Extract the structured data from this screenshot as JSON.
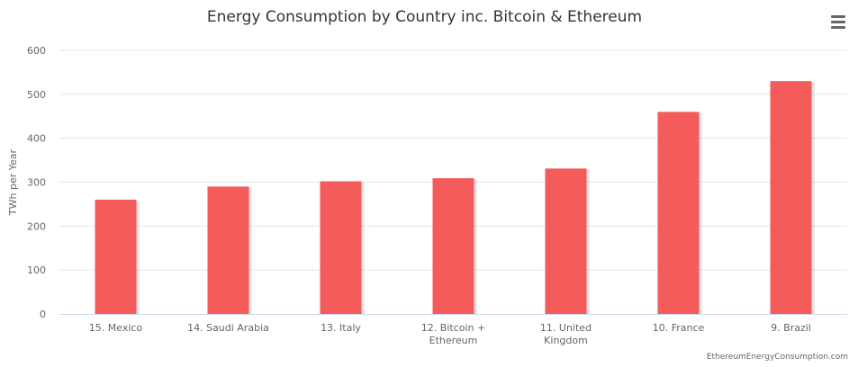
{
  "chart_data": {
    "type": "bar",
    "title": "Energy Consumption by Country inc. Bitcoin & Ethereum",
    "xlabel": "",
    "ylabel": "TWh per Year",
    "categories": [
      "15. Mexico",
      "14. Saudi Arabia",
      "13. Italy",
      "12. Bitcoin + Ethereum",
      "11. United Kingdom",
      "10. France",
      "9. Brazil"
    ],
    "values": [
      260,
      290,
      302,
      309,
      331,
      460,
      530
    ],
    "ylim": [
      0,
      600
    ],
    "yticks": [
      0,
      100,
      200,
      300,
      400,
      500,
      600
    ],
    "bar_color": "#f45b5b",
    "grid": true,
    "legend": "none"
  },
  "credit": "EthereumEnergyConsumption.com",
  "menu_icon": "hamburger-menu-icon"
}
